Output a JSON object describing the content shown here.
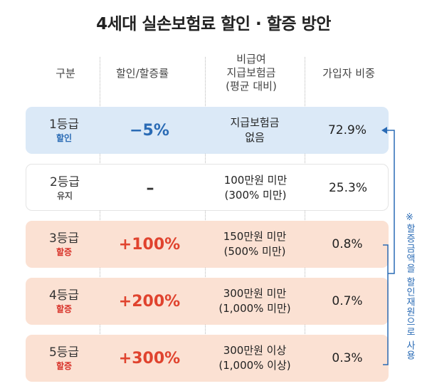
{
  "title": "4세대 실손보험료 할인 · 할증 방안",
  "headers": {
    "gubun": "구분",
    "rate": "할인/할증률",
    "cost_line1": "비급여",
    "cost_line2": "지급보험금",
    "cost_line3": "(평균 대비)",
    "share": "가입자 비중"
  },
  "rows": [
    {
      "grade": "1등급",
      "status": "할인",
      "rate": "−5%",
      "cost_line1": "지급보험금",
      "cost_line2": "없음",
      "share": "72.9%"
    },
    {
      "grade": "2등급",
      "status": "유지",
      "rate": "–",
      "cost_line1": "100만원 미만",
      "cost_line2": "(300% 미만)",
      "share": "25.3%"
    },
    {
      "grade": "3등급",
      "status": "할증",
      "rate": "+100%",
      "cost_line1": "150만원 미만",
      "cost_line2": "(500% 미만)",
      "share": "0.8%"
    },
    {
      "grade": "4등급",
      "status": "할증",
      "rate": "+200%",
      "cost_line1": "300만원 미만",
      "cost_line2": "(1,000% 미만)",
      "share": "0.7%"
    },
    {
      "grade": "5등급",
      "status": "할증",
      "rate": "+300%",
      "cost_line1": "300만원 이상",
      "cost_line2": "(1,000% 이상)",
      "share": "0.3%"
    }
  ],
  "side_note": "※할증금액을 할인재원으로 사용",
  "colors": {
    "blue_row": "#dbe9f7",
    "peach_row": "#fbe1d3",
    "accent_blue": "#2a6bb5",
    "accent_red": "#e0432e"
  }
}
